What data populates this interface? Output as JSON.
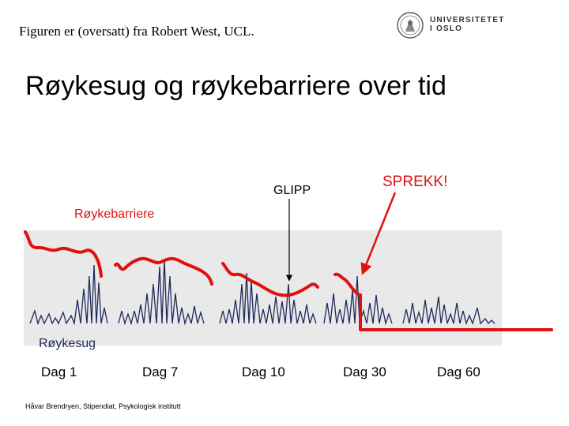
{
  "header": {
    "source_note": "Figuren er (oversatt) fra Robert West, UCL.",
    "logo": {
      "name": "university-of-oslo-logo",
      "line1": "UNIVERSITETET",
      "line2": "I OSLO"
    }
  },
  "title": "Røykesug og røykebarriere over tid",
  "diagram": {
    "annotations": {
      "glipp": "GLIPP",
      "sprekk": "SPREKK!"
    },
    "labels": {
      "barrier": "Røykebarriere",
      "craving": "Røykesug"
    },
    "days": [
      "Dag 1",
      "Dag 7",
      "Dag 10",
      "Dag 30",
      "Dag 60"
    ],
    "colors": {
      "barrier": "#e01010",
      "trace": "#1e2a5a",
      "panel": "#e9e9e9",
      "sprekk": "#e01010"
    }
  },
  "footer": {
    "credit": "Håvar Brendryen, Stipendiat, Psykologisk institutt"
  }
}
